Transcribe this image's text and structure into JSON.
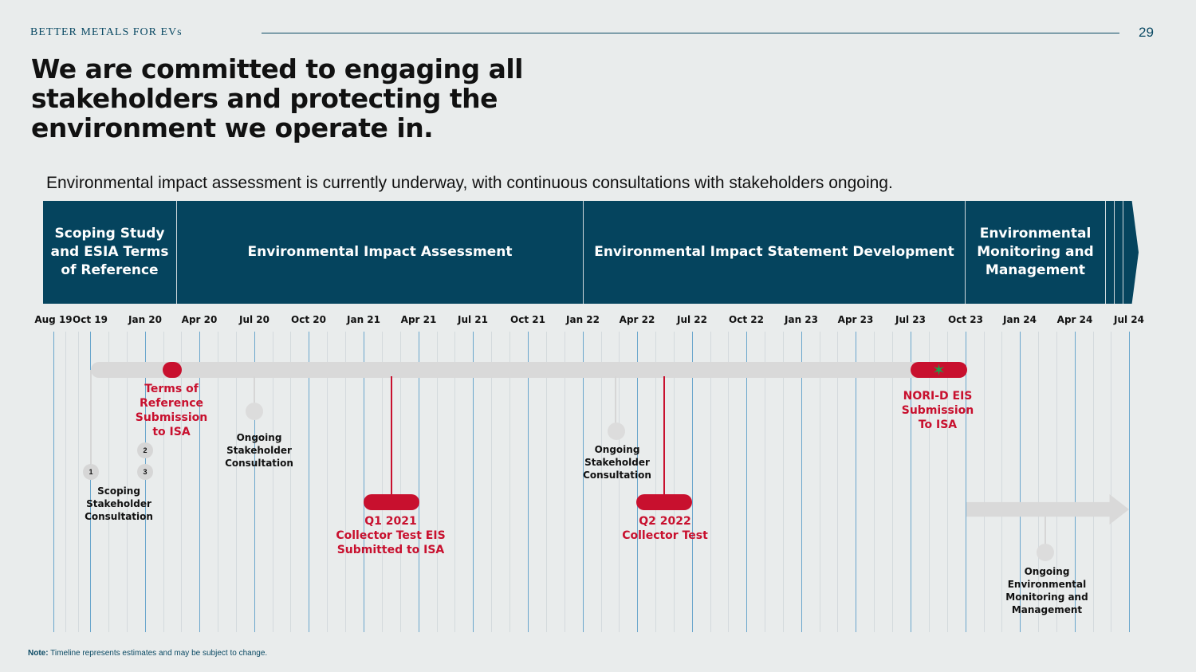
{
  "header": {
    "brand": "BETTER METALS FOR EVs",
    "page_number": "29"
  },
  "title": "We are committed to engaging all stakeholders and protecting the environment we operate in.",
  "subtitle": "Environmental impact assessment is currently underway, with continuous consultations with stakeholders ongoing.",
  "phases": [
    "Scoping Study and ESIA Terms of Reference",
    "Environmental Impact Assessment",
    "Environmental Impact Statement Development",
    "Environmental Monitoring and Management"
  ],
  "months": [
    "Aug 19",
    "Oct 19",
    "Jan 20",
    "Apr 20",
    "Jul 20",
    "Oct 20",
    "Jan 21",
    "Apr 21",
    "Jul 21",
    "Oct 21",
    "Jan 22",
    "Apr 22",
    "Jul 22",
    "Oct 22",
    "Jan 23",
    "Apr 23",
    "Jul 23",
    "Oct 23",
    "Jan 24",
    "Apr 24",
    "Jul 24"
  ],
  "markers": {
    "n1": "1",
    "n2": "2",
    "n3": "3",
    "star": "✶"
  },
  "milestones": {
    "scoping_consultation": "Scoping\nStakeholder\nConsultation",
    "terms_submission": "Terms of\nReference\nSubmission\nto ISA",
    "ongoing_1": "Ongoing\nStakeholder\nConsultation",
    "q1_2021": "Q1 2021\nCollector Test EIS\nSubmitted to ISA",
    "ongoing_2": "Ongoing\nStakeholder\nConsultation",
    "q2_2022": "Q2 2022\nCollector Test",
    "nori_d": "NORI-D EIS\nSubmission\nTo ISA",
    "monitoring": "Ongoing\nEnvironmental\nMonitoring and\nManagement"
  },
  "note": {
    "label": "Note:",
    "text": " Timeline represents estimates and may be subject to change."
  },
  "colors": {
    "banner": "#05445e",
    "accent_red": "#c8102e",
    "grid_line": "#6aa6cc",
    "bar_grey": "#d9d9d9"
  }
}
